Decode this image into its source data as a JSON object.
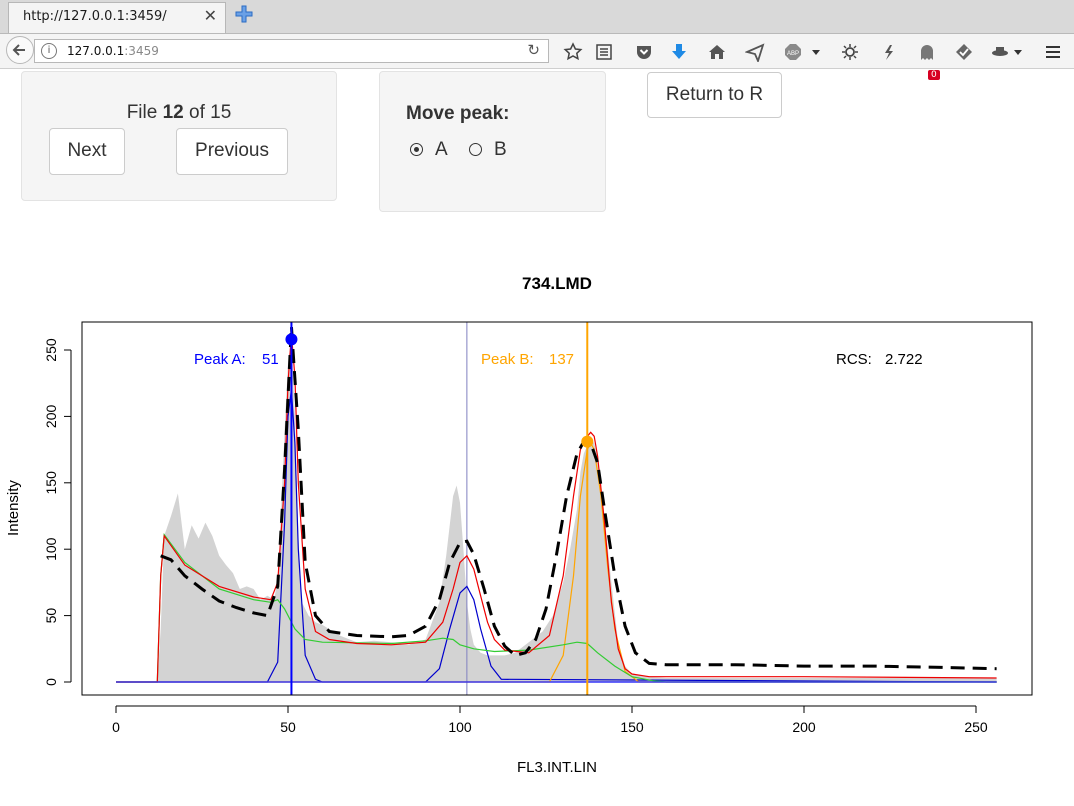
{
  "browser": {
    "tab_title": "http://127.0.0.1:3459/",
    "url_host": "127.0.0.1",
    "url_port": ":3459",
    "notification_count": "0"
  },
  "file_panel": {
    "prefix": "File ",
    "current": "12",
    "suffix": " of 15",
    "next_label": "Next",
    "previous_label": "Previous"
  },
  "peak_panel": {
    "title": "Move peak:",
    "options": [
      "A",
      "B"
    ],
    "selected": "A"
  },
  "return_label": "Return to R",
  "colors": {
    "peak_a": "#0000ff",
    "peak_b": "#ffa500",
    "fit": "#000000",
    "histogram": "#d3d3d3",
    "component_a": "#0000cd",
    "component_b": "#ffa500",
    "debris": "#33cc33",
    "total": "#ee0000"
  },
  "chart_data": {
    "type": "area",
    "title": "734.LMD",
    "xlabel": "FL3.INT.LIN",
    "ylabel": "Intensity",
    "xlim": [
      0,
      256
    ],
    "ylim": [
      -10,
      272
    ],
    "xticks": [
      "0",
      "50",
      "100",
      "150",
      "200",
      "250"
    ],
    "yticks": [
      "0",
      "50",
      "100",
      "150",
      "200",
      "250"
    ],
    "annotations": {
      "peak_a_label": "Peak A:",
      "peak_a_value": "51",
      "peak_b_label": "Peak B:",
      "peak_b_value": "137",
      "rcs_label": "RCS:",
      "rcs_value": "2.722"
    },
    "peak_a": {
      "x": 51,
      "y": 258
    },
    "peak_b": {
      "x": 137,
      "y": 181
    },
    "divider_x": 102,
    "series": [
      {
        "name": "histogram",
        "x": [
          0,
          12,
          13,
          14,
          16,
          18,
          20,
          22,
          24,
          26,
          28,
          30,
          32,
          34,
          36,
          38,
          40,
          42,
          44,
          46,
          47,
          48,
          49,
          50,
          51,
          52,
          53,
          54,
          56,
          58,
          60,
          65,
          70,
          75,
          80,
          85,
          90,
          94,
          96,
          98,
          99,
          100,
          101,
          102,
          103,
          104,
          106,
          108,
          110,
          113,
          116,
          120,
          124,
          127,
          130,
          132,
          134,
          135,
          136,
          137,
          138,
          139,
          140,
          141,
          142,
          143,
          144,
          145,
          146,
          148,
          150,
          155,
          160,
          180,
          200,
          220,
          240,
          256
        ],
        "y": [
          0,
          0,
          40,
          110,
          125,
          142,
          100,
          118,
          108,
          120,
          110,
          95,
          88,
          82,
          70,
          72,
          70,
          62,
          65,
          62,
          78,
          130,
          190,
          240,
          258,
          200,
          110,
          60,
          50,
          45,
          43,
          35,
          30,
          31,
          30,
          28,
          32,
          60,
          95,
          140,
          148,
          135,
          100,
          60,
          40,
          28,
          22,
          20,
          20,
          20,
          22,
          30,
          38,
          50,
          75,
          100,
          130,
          158,
          172,
          178,
          182,
          180,
          168,
          150,
          125,
          100,
          75,
          52,
          30,
          12,
          6,
          4,
          3,
          3,
          3,
          3,
          3,
          3
        ]
      },
      {
        "name": "fit",
        "x": [
          13,
          16,
          20,
          25,
          30,
          35,
          40,
          44,
          47,
          49,
          51,
          53,
          55,
          58,
          62,
          70,
          80,
          85,
          90,
          94,
          97,
          100,
          102,
          104,
          107,
          110,
          113,
          116,
          119,
          122,
          125,
          128,
          131,
          134,
          136,
          137,
          138,
          140,
          142,
          145,
          148,
          151,
          155,
          160,
          180,
          200,
          220,
          240,
          256
        ],
        "y": [
          95,
          92,
          80,
          70,
          61,
          56,
          52,
          50,
          72,
          160,
          268,
          190,
          90,
          50,
          38,
          35,
          34,
          35,
          42,
          62,
          90,
          105,
          106,
          96,
          70,
          42,
          27,
          20,
          22,
          32,
          55,
          95,
          140,
          172,
          181,
          182,
          180,
          165,
          130,
          80,
          42,
          22,
          14,
          13,
          13,
          12,
          12,
          11,
          10
        ]
      },
      {
        "name": "total",
        "x": [
          0,
          12,
          13,
          14,
          20,
          30,
          40,
          45,
          47,
          49,
          50,
          51,
          52,
          53,
          55,
          58,
          62,
          70,
          80,
          90,
          95,
          98,
          100,
          102,
          104,
          106,
          108,
          110,
          113,
          120,
          126,
          130,
          133,
          135,
          137,
          138,
          139,
          140,
          142,
          144,
          146,
          148,
          150,
          155,
          200,
          256
        ],
        "y": [
          0,
          0,
          80,
          110,
          88,
          72,
          64,
          62,
          75,
          150,
          225,
          262,
          230,
          150,
          70,
          38,
          32,
          29,
          28,
          30,
          45,
          70,
          90,
          95,
          85,
          65,
          45,
          32,
          24,
          22,
          35,
          80,
          140,
          175,
          185,
          188,
          185,
          170,
          120,
          60,
          25,
          10,
          6,
          4,
          4,
          3
        ]
      },
      {
        "name": "debris",
        "x": [
          0,
          12,
          13,
          14,
          20,
          30,
          40,
          45,
          47,
          49,
          52,
          55,
          60,
          80,
          90,
          95,
          98,
          100,
          104,
          110,
          120,
          130,
          134,
          137,
          140,
          145,
          150,
          156,
          160,
          200,
          256
        ],
        "y": [
          0,
          0,
          80,
          111,
          90,
          70,
          62,
          60,
          62,
          55,
          40,
          32,
          30,
          29,
          31,
          33,
          32,
          28,
          25,
          23,
          24,
          28,
          30,
          29,
          22,
          12,
          4,
          1,
          0,
          0,
          0
        ]
      },
      {
        "name": "component_a",
        "x": [
          0,
          44,
          47,
          49,
          50,
          51,
          52,
          53,
          55,
          58,
          60,
          256
        ],
        "y": [
          0,
          0,
          15,
          120,
          200,
          220,
          180,
          100,
          20,
          2,
          0,
          0
        ]
      },
      {
        "name": "component_a_g2",
        "x": [
          0,
          90,
          94,
          97,
          100,
          102,
          104,
          106,
          109,
          112,
          256
        ],
        "y": [
          0,
          0,
          10,
          40,
          67,
          72,
          62,
          40,
          12,
          2,
          0
        ]
      },
      {
        "name": "component_b",
        "x": [
          0,
          126,
          130,
          133,
          135,
          137,
          138,
          139,
          141,
          143,
          145,
          148,
          152,
          256
        ],
        "y": [
          0,
          0,
          20,
          80,
          140,
          175,
          180,
          175,
          140,
          85,
          40,
          8,
          0,
          0
        ]
      }
    ]
  }
}
